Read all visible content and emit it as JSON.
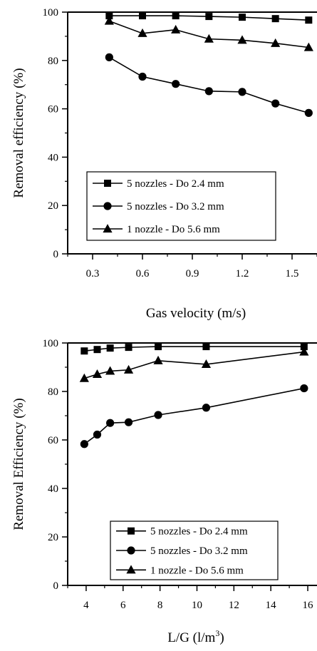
{
  "chart_data": [
    {
      "type": "line",
      "xlabel": "Gas velocity (m/s)",
      "ylabel": "Removal efficiency (%)",
      "xlim": [
        0.15,
        1.65
      ],
      "ylim": [
        0,
        100
      ],
      "xticks": [
        "0.3",
        "0.6",
        "0.9",
        "1.2",
        "1.5"
      ],
      "yticks": [
        "0",
        "20",
        "40",
        "60",
        "80",
        "100"
      ],
      "legend_position": "bottom-left",
      "series": [
        {
          "name": "5 nozzles - Do 2.4 mm",
          "marker": "square",
          "x": [
            0.4,
            0.6,
            0.8,
            1.0,
            1.2,
            1.4,
            1.6
          ],
          "y": [
            98.5,
            98.5,
            98.5,
            98.2,
            97.9,
            97.3,
            96.7
          ]
        },
        {
          "name": "5 nozzles - Do 3.2 mm",
          "marker": "circle",
          "x": [
            0.4,
            0.6,
            0.8,
            1.0,
            1.2,
            1.4,
            1.6
          ],
          "y": [
            81.3,
            73.3,
            70.3,
            67.3,
            67.0,
            62.2,
            58.3
          ]
        },
        {
          "name": "1 nozzle - Do 5.6 mm",
          "marker": "triangle",
          "x": [
            0.4,
            0.6,
            0.8,
            1.0,
            1.2,
            1.4,
            1.6
          ],
          "y": [
            96.3,
            91.2,
            92.7,
            88.9,
            88.4,
            87.1,
            85.4
          ]
        }
      ]
    },
    {
      "type": "line",
      "xlabel": "L/G (l/m",
      "xlabel_sup": "3",
      "xlabel_end": ")",
      "ylabel": "Removal Efficiency (%)",
      "xlim": [
        3,
        16.5
      ],
      "ylim": [
        0,
        100
      ],
      "xticks": [
        "4",
        "6",
        "8",
        "10",
        "12",
        "14",
        "16"
      ],
      "yticks": [
        "0",
        "20",
        "40",
        "60",
        "80",
        "100"
      ],
      "legend_position": "bottom-right",
      "series": [
        {
          "name": "5 nozzles - Do 2.4 mm",
          "marker": "square",
          "x": [
            3.9,
            4.6,
            5.3,
            6.3,
            7.9,
            10.5,
            15.8
          ],
          "y": [
            96.7,
            97.3,
            97.9,
            98.2,
            98.5,
            98.5,
            98.5
          ]
        },
        {
          "name": "5 nozzles - Do 3.2 mm",
          "marker": "circle",
          "x": [
            3.9,
            4.6,
            5.3,
            6.3,
            7.9,
            10.5,
            15.8
          ],
          "y": [
            58.3,
            62.2,
            67.0,
            67.3,
            70.3,
            73.3,
            81.3
          ]
        },
        {
          "name": "1 nozzle - Do 5.6 mm",
          "marker": "triangle",
          "x": [
            3.9,
            4.6,
            5.3,
            6.3,
            7.9,
            10.5,
            15.8
          ],
          "y": [
            85.4,
            87.1,
            88.4,
            88.9,
            92.7,
            91.2,
            96.3
          ]
        }
      ]
    }
  ]
}
